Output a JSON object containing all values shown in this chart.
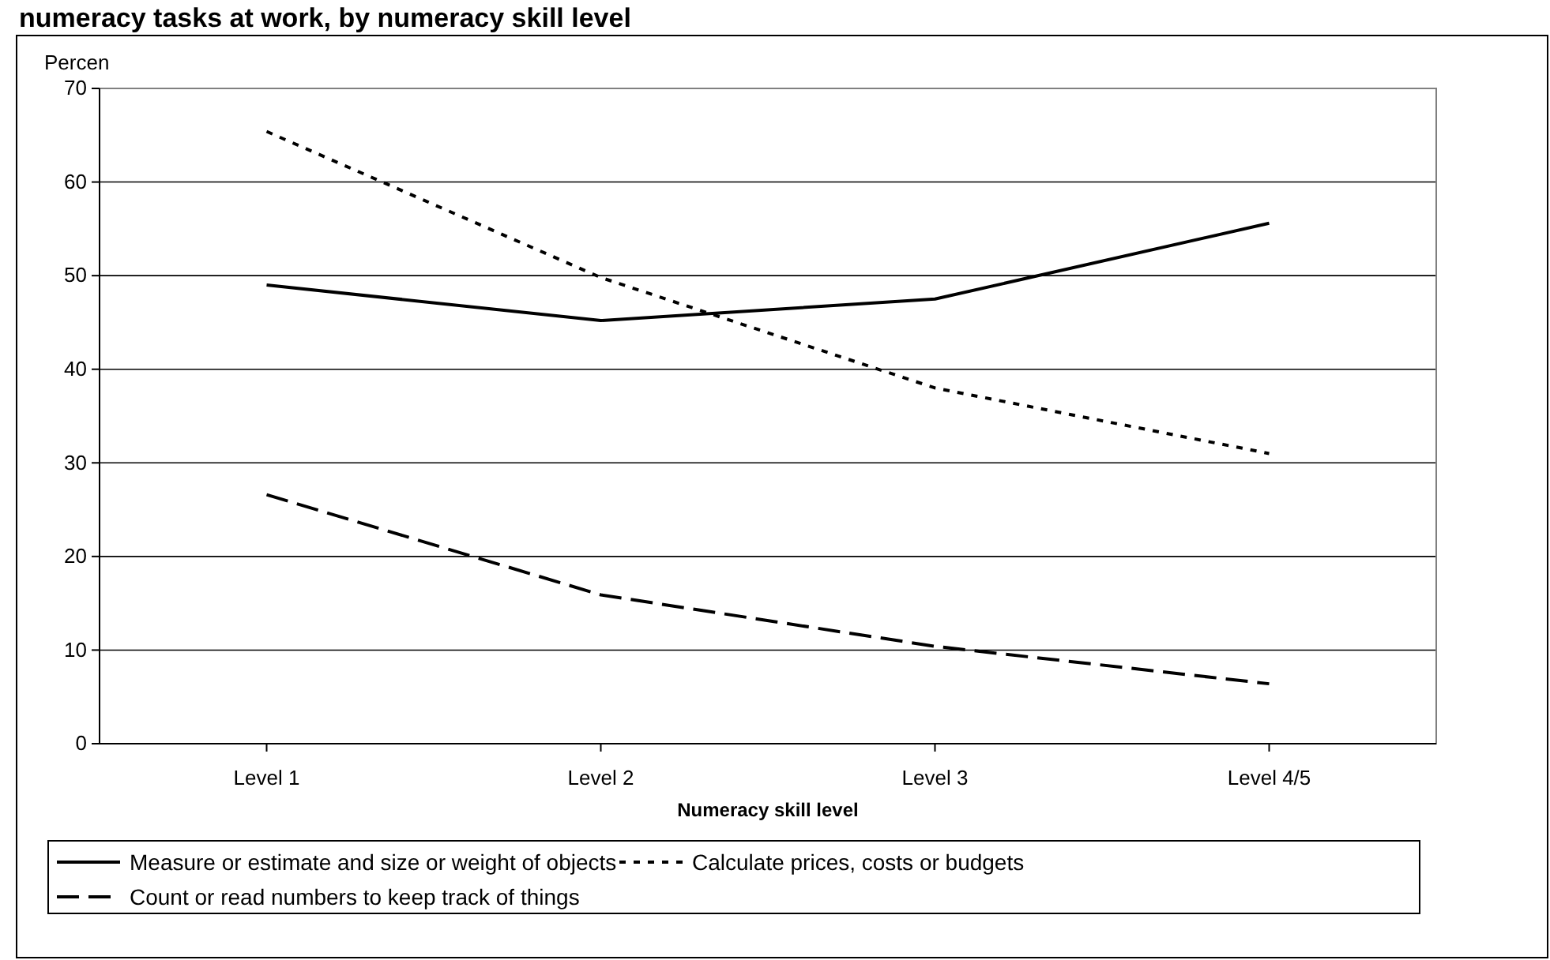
{
  "chart_data": {
    "type": "line",
    "title": "numeracy tasks at work, by numeracy skill level",
    "xlabel": "Numeracy skill level",
    "ylabel": "Percen",
    "categories": [
      "Level 1",
      "Level 2",
      "Level 3",
      "Level 4/5"
    ],
    "series": [
      {
        "name": "Measure or estimate and size or weight of objects",
        "color": "#000000",
        "line_style": "solid",
        "values": [
          49,
          45.2,
          47.5,
          55.6
        ]
      },
      {
        "name": "Calculate prices, costs or budgets",
        "color": "#000000",
        "line_style": "dotted",
        "values": [
          65.4,
          49.8,
          38,
          31
        ]
      },
      {
        "name": "Count or read numbers to keep track of things",
        "color": "#000000",
        "line_style": "dashed",
        "values": [
          26.6,
          15.9,
          10.4,
          6.4
        ]
      }
    ],
    "ylim": [
      0,
      70
    ],
    "yticks": [
      0,
      10,
      20,
      30,
      40,
      50,
      60,
      70
    ],
    "grid": "y",
    "legend": "bottom",
    "marker": "none"
  }
}
